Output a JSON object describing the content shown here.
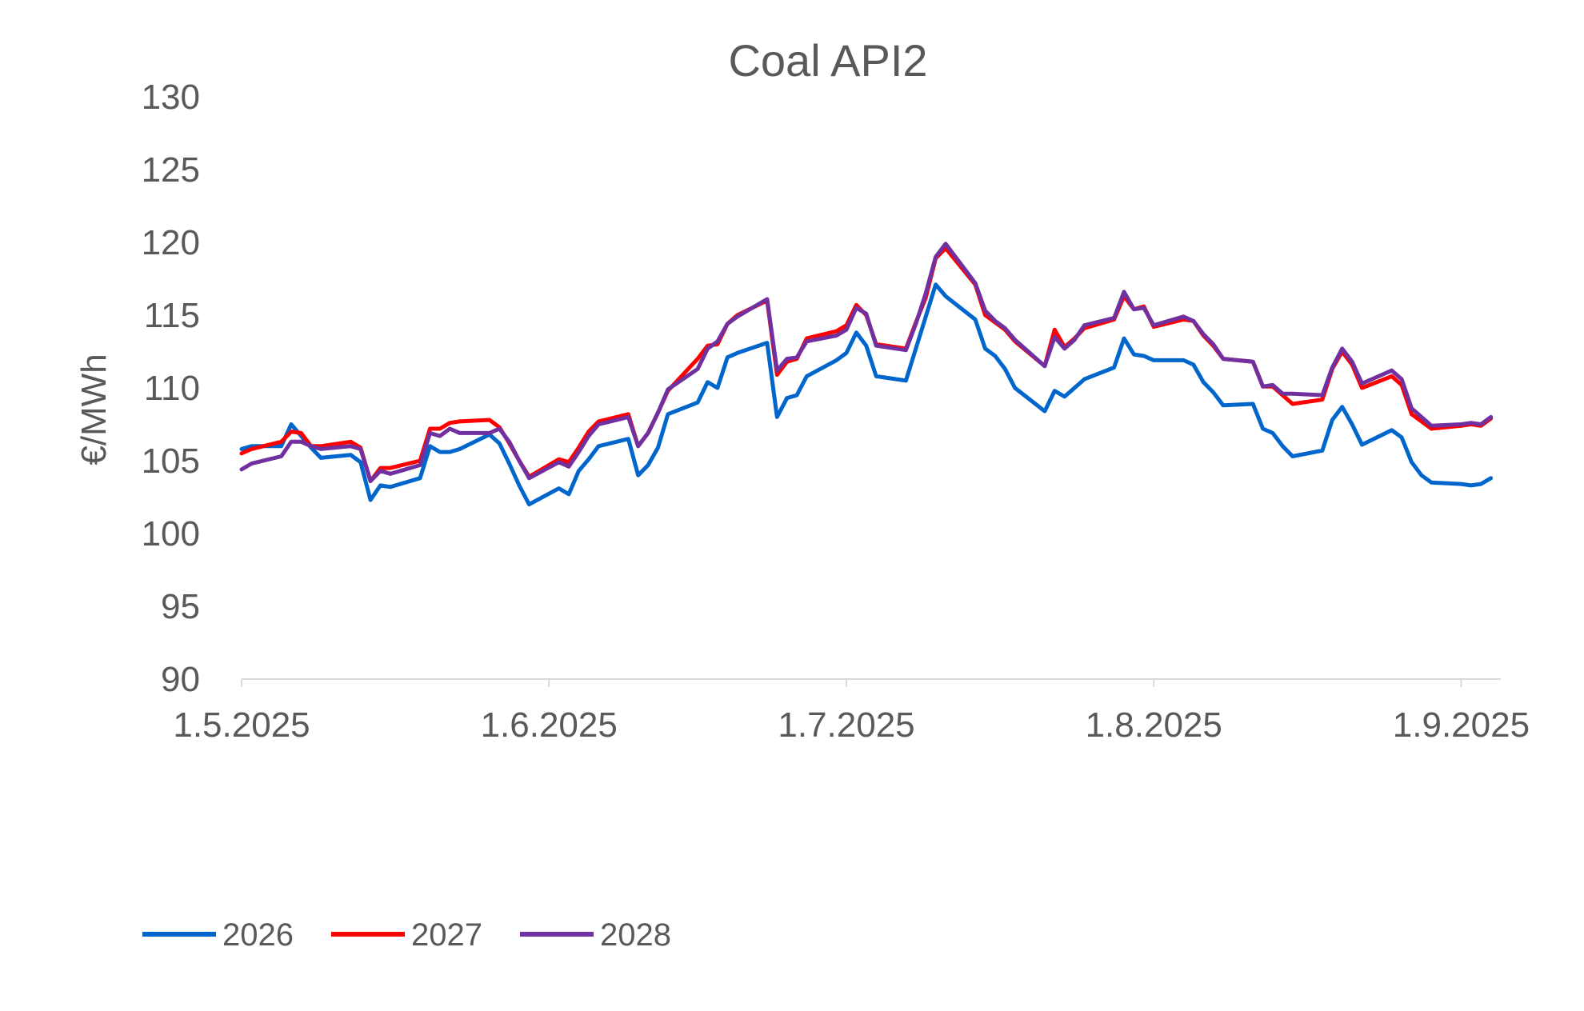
{
  "chart_data": {
    "type": "line",
    "title": "Coal API2",
    "ylabel": "€/MWh",
    "xlabel": "",
    "ylim": [
      90,
      130
    ],
    "yticks": [
      90,
      95,
      100,
      105,
      110,
      115,
      120,
      125,
      130
    ],
    "xrange": [
      "2025-05-01",
      "2025-09-05"
    ],
    "xticks": [
      {
        "date": "2025-05-01",
        "label": "1.5.2025"
      },
      {
        "date": "2025-06-01",
        "label": "1.6.2025"
      },
      {
        "date": "2025-07-01",
        "label": "1.7.2025"
      },
      {
        "date": "2025-08-01",
        "label": "1.8.2025"
      },
      {
        "date": "2025-09-01",
        "label": "1.9.2025"
      }
    ],
    "grid": false,
    "legend_position": "bottom-left",
    "series": [
      {
        "name": "2026",
        "color": "#0066CC",
        "points": [
          [
            "2025-05-01",
            105.8
          ],
          [
            "2025-05-02",
            106.0
          ],
          [
            "2025-05-05",
            106.0
          ],
          [
            "2025-05-06",
            107.5
          ],
          [
            "2025-05-07",
            106.7
          ],
          [
            "2025-05-08",
            105.9
          ],
          [
            "2025-05-09",
            105.2
          ],
          [
            "2025-05-12",
            105.4
          ],
          [
            "2025-05-13",
            104.9
          ],
          [
            "2025-05-14",
            102.3
          ],
          [
            "2025-05-15",
            103.3
          ],
          [
            "2025-05-16",
            103.2
          ],
          [
            "2025-05-19",
            103.8
          ],
          [
            "2025-05-20",
            106.0
          ],
          [
            "2025-05-21",
            105.6
          ],
          [
            "2025-05-22",
            105.6
          ],
          [
            "2025-05-23",
            105.8
          ],
          [
            "2025-05-26",
            106.8
          ],
          [
            "2025-05-27",
            106.2
          ],
          [
            "2025-05-28",
            104.8
          ],
          [
            "2025-05-29",
            103.3
          ],
          [
            "2025-05-30",
            102.0
          ],
          [
            "2025-06-02",
            103.1
          ],
          [
            "2025-06-03",
            102.7
          ],
          [
            "2025-06-04",
            104.3
          ],
          [
            "2025-06-05",
            105.1
          ],
          [
            "2025-06-06",
            106.0
          ],
          [
            "2025-06-09",
            106.5
          ],
          [
            "2025-06-10",
            104.0
          ],
          [
            "2025-06-11",
            104.7
          ],
          [
            "2025-06-12",
            105.9
          ],
          [
            "2025-06-13",
            108.2
          ],
          [
            "2025-06-16",
            109.0
          ],
          [
            "2025-06-17",
            110.4
          ],
          [
            "2025-06-18",
            110.0
          ],
          [
            "2025-06-19",
            112.1
          ],
          [
            "2025-06-20",
            112.4
          ],
          [
            "2025-06-23",
            113.1
          ],
          [
            "2025-06-24",
            108.0
          ],
          [
            "2025-06-25",
            109.3
          ],
          [
            "2025-06-26",
            109.5
          ],
          [
            "2025-06-27",
            110.8
          ],
          [
            "2025-06-30",
            111.9
          ],
          [
            "2025-07-01",
            112.4
          ],
          [
            "2025-07-02",
            113.8
          ],
          [
            "2025-07-03",
            112.9
          ],
          [
            "2025-07-04",
            110.8
          ],
          [
            "2025-07-07",
            110.5
          ],
          [
            "2025-07-10",
            117.1
          ],
          [
            "2025-07-11",
            116.3
          ],
          [
            "2025-07-14",
            114.7
          ],
          [
            "2025-07-15",
            112.7
          ],
          [
            "2025-07-16",
            112.2
          ],
          [
            "2025-07-17",
            111.3
          ],
          [
            "2025-07-18",
            110.0
          ],
          [
            "2025-07-21",
            108.4
          ],
          [
            "2025-07-22",
            109.8
          ],
          [
            "2025-07-23",
            109.4
          ],
          [
            "2025-07-24",
            110.0
          ],
          [
            "2025-07-25",
            110.6
          ],
          [
            "2025-07-28",
            111.4
          ],
          [
            "2025-07-29",
            113.4
          ],
          [
            "2025-07-30",
            112.3
          ],
          [
            "2025-07-31",
            112.2
          ],
          [
            "2025-08-01",
            111.9
          ],
          [
            "2025-08-04",
            111.9
          ],
          [
            "2025-08-05",
            111.6
          ],
          [
            "2025-08-06",
            110.4
          ],
          [
            "2025-08-07",
            109.7
          ],
          [
            "2025-08-08",
            108.8
          ],
          [
            "2025-08-11",
            108.9
          ],
          [
            "2025-08-12",
            107.2
          ],
          [
            "2025-08-13",
            106.9
          ],
          [
            "2025-08-14",
            106.0
          ],
          [
            "2025-08-15",
            105.3
          ],
          [
            "2025-08-18",
            105.7
          ],
          [
            "2025-08-19",
            107.8
          ],
          [
            "2025-08-20",
            108.7
          ],
          [
            "2025-08-21",
            107.5
          ],
          [
            "2025-08-22",
            106.1
          ],
          [
            "2025-08-25",
            107.1
          ],
          [
            "2025-08-26",
            106.6
          ],
          [
            "2025-08-27",
            104.9
          ],
          [
            "2025-08-28",
            104.0
          ],
          [
            "2025-08-29",
            103.5
          ],
          [
            "2025-09-01",
            103.4
          ],
          [
            "2025-09-02",
            103.3
          ],
          [
            "2025-09-03",
            103.4
          ],
          [
            "2025-09-04",
            103.8
          ]
        ]
      },
      {
        "name": "2027",
        "color": "#FF0000",
        "points": [
          [
            "2025-05-01",
            105.5
          ],
          [
            "2025-05-02",
            105.8
          ],
          [
            "2025-05-05",
            106.3
          ],
          [
            "2025-05-06",
            107.0
          ],
          [
            "2025-05-07",
            106.9
          ],
          [
            "2025-05-08",
            106.0
          ],
          [
            "2025-05-09",
            106.0
          ],
          [
            "2025-05-12",
            106.3
          ],
          [
            "2025-05-13",
            105.9
          ],
          [
            "2025-05-14",
            103.6
          ],
          [
            "2025-05-15",
            104.5
          ],
          [
            "2025-05-16",
            104.5
          ],
          [
            "2025-05-19",
            105.0
          ],
          [
            "2025-05-20",
            107.2
          ],
          [
            "2025-05-21",
            107.2
          ],
          [
            "2025-05-22",
            107.6
          ],
          [
            "2025-05-23",
            107.7
          ],
          [
            "2025-05-26",
            107.8
          ],
          [
            "2025-05-27",
            107.3
          ],
          [
            "2025-05-28",
            106.2
          ],
          [
            "2025-05-29",
            105.0
          ],
          [
            "2025-05-30",
            103.9
          ],
          [
            "2025-06-02",
            105.1
          ],
          [
            "2025-06-03",
            104.9
          ],
          [
            "2025-06-04",
            105.9
          ],
          [
            "2025-06-05",
            107.0
          ],
          [
            "2025-06-06",
            107.7
          ],
          [
            "2025-06-09",
            108.2
          ],
          [
            "2025-06-10",
            106.0
          ],
          [
            "2025-06-11",
            106.9
          ],
          [
            "2025-06-12",
            108.3
          ],
          [
            "2025-06-13",
            109.8
          ],
          [
            "2025-06-16",
            112.0
          ],
          [
            "2025-06-17",
            112.9
          ],
          [
            "2025-06-18",
            113.0
          ],
          [
            "2025-06-19",
            114.4
          ],
          [
            "2025-06-20",
            115.0
          ],
          [
            "2025-06-23",
            116.0
          ],
          [
            "2025-06-24",
            110.9
          ],
          [
            "2025-06-25",
            111.8
          ],
          [
            "2025-06-26",
            112.0
          ],
          [
            "2025-06-27",
            113.4
          ],
          [
            "2025-06-30",
            113.9
          ],
          [
            "2025-07-01",
            114.3
          ],
          [
            "2025-07-02",
            115.7
          ],
          [
            "2025-07-03",
            115.0
          ],
          [
            "2025-07-04",
            113.0
          ],
          [
            "2025-07-07",
            112.7
          ],
          [
            "2025-07-08",
            114.5
          ],
          [
            "2025-07-09",
            116.2
          ],
          [
            "2025-07-10",
            118.9
          ],
          [
            "2025-07-11",
            119.6
          ],
          [
            "2025-07-14",
            117.1
          ],
          [
            "2025-07-15",
            115.0
          ],
          [
            "2025-07-16",
            114.5
          ],
          [
            "2025-07-17",
            114.0
          ],
          [
            "2025-07-18",
            113.2
          ],
          [
            "2025-07-21",
            111.5
          ],
          [
            "2025-07-22",
            114.0
          ],
          [
            "2025-07-23",
            112.8
          ],
          [
            "2025-07-24",
            113.4
          ],
          [
            "2025-07-25",
            114.1
          ],
          [
            "2025-07-28",
            114.7
          ],
          [
            "2025-07-29",
            116.3
          ],
          [
            "2025-07-30",
            115.4
          ],
          [
            "2025-07-31",
            115.6
          ],
          [
            "2025-08-01",
            114.2
          ],
          [
            "2025-08-04",
            114.7
          ],
          [
            "2025-08-05",
            114.6
          ],
          [
            "2025-08-06",
            113.6
          ],
          [
            "2025-08-07",
            112.9
          ],
          [
            "2025-08-08",
            112.0
          ],
          [
            "2025-08-11",
            111.8
          ],
          [
            "2025-08-12",
            110.1
          ],
          [
            "2025-08-13",
            110.1
          ],
          [
            "2025-08-14",
            109.5
          ],
          [
            "2025-08-15",
            108.9
          ],
          [
            "2025-08-18",
            109.2
          ],
          [
            "2025-08-19",
            111.3
          ],
          [
            "2025-08-20",
            112.5
          ],
          [
            "2025-08-21",
            111.6
          ],
          [
            "2025-08-22",
            110.0
          ],
          [
            "2025-08-25",
            110.8
          ],
          [
            "2025-08-26",
            110.2
          ],
          [
            "2025-08-27",
            108.2
          ],
          [
            "2025-08-28",
            107.7
          ],
          [
            "2025-08-29",
            107.2
          ],
          [
            "2025-09-01",
            107.4
          ],
          [
            "2025-09-02",
            107.5
          ],
          [
            "2025-09-03",
            107.4
          ],
          [
            "2025-09-04",
            107.9
          ]
        ]
      },
      {
        "name": "2028",
        "color": "#7030A0",
        "points": [
          [
            "2025-05-01",
            104.4
          ],
          [
            "2025-05-02",
            104.8
          ],
          [
            "2025-05-05",
            105.3
          ],
          [
            "2025-05-06",
            106.3
          ],
          [
            "2025-05-07",
            106.3
          ],
          [
            "2025-05-08",
            106.0
          ],
          [
            "2025-05-09",
            105.8
          ],
          [
            "2025-05-12",
            106.0
          ],
          [
            "2025-05-13",
            105.8
          ],
          [
            "2025-05-14",
            103.6
          ],
          [
            "2025-05-15",
            104.3
          ],
          [
            "2025-05-16",
            104.1
          ],
          [
            "2025-05-19",
            104.7
          ],
          [
            "2025-05-20",
            106.9
          ],
          [
            "2025-05-21",
            106.7
          ],
          [
            "2025-05-22",
            107.2
          ],
          [
            "2025-05-23",
            106.9
          ],
          [
            "2025-05-26",
            106.9
          ],
          [
            "2025-05-27",
            107.2
          ],
          [
            "2025-05-28",
            106.3
          ],
          [
            "2025-05-29",
            105.0
          ],
          [
            "2025-05-30",
            103.8
          ],
          [
            "2025-06-02",
            104.9
          ],
          [
            "2025-06-03",
            104.6
          ],
          [
            "2025-06-04",
            105.6
          ],
          [
            "2025-06-05",
            106.7
          ],
          [
            "2025-06-06",
            107.5
          ],
          [
            "2025-06-09",
            108.0
          ],
          [
            "2025-06-10",
            106.0
          ],
          [
            "2025-06-11",
            106.9
          ],
          [
            "2025-06-12",
            108.3
          ],
          [
            "2025-06-13",
            109.9
          ],
          [
            "2025-06-16",
            111.3
          ],
          [
            "2025-06-17",
            112.7
          ],
          [
            "2025-06-18",
            113.2
          ],
          [
            "2025-06-19",
            114.4
          ],
          [
            "2025-06-20",
            114.9
          ],
          [
            "2025-06-23",
            116.1
          ],
          [
            "2025-06-24",
            111.2
          ],
          [
            "2025-06-25",
            112.0
          ],
          [
            "2025-06-26",
            112.1
          ],
          [
            "2025-06-27",
            113.2
          ],
          [
            "2025-06-30",
            113.6
          ],
          [
            "2025-07-01",
            114.0
          ],
          [
            "2025-07-02",
            115.5
          ],
          [
            "2025-07-03",
            115.1
          ],
          [
            "2025-07-04",
            112.9
          ],
          [
            "2025-07-07",
            112.6
          ],
          [
            "2025-07-08",
            114.4
          ],
          [
            "2025-07-09",
            116.5
          ],
          [
            "2025-07-10",
            119.0
          ],
          [
            "2025-07-11",
            119.9
          ],
          [
            "2025-07-14",
            117.2
          ],
          [
            "2025-07-15",
            115.3
          ],
          [
            "2025-07-16",
            114.6
          ],
          [
            "2025-07-17",
            114.1
          ],
          [
            "2025-07-18",
            113.3
          ],
          [
            "2025-07-21",
            111.5
          ],
          [
            "2025-07-22",
            113.5
          ],
          [
            "2025-07-23",
            112.7
          ],
          [
            "2025-07-24",
            113.3
          ],
          [
            "2025-07-25",
            114.3
          ],
          [
            "2025-07-28",
            114.8
          ],
          [
            "2025-07-29",
            116.6
          ],
          [
            "2025-07-30",
            115.4
          ],
          [
            "2025-07-31",
            115.5
          ],
          [
            "2025-08-01",
            114.3
          ],
          [
            "2025-08-04",
            114.9
          ],
          [
            "2025-08-05",
            114.6
          ],
          [
            "2025-08-06",
            113.7
          ],
          [
            "2025-08-07",
            113.0
          ],
          [
            "2025-08-08",
            112.0
          ],
          [
            "2025-08-11",
            111.8
          ],
          [
            "2025-08-12",
            110.1
          ],
          [
            "2025-08-13",
            110.2
          ],
          [
            "2025-08-14",
            109.6
          ],
          [
            "2025-08-15",
            109.6
          ],
          [
            "2025-08-18",
            109.5
          ],
          [
            "2025-08-19",
            111.4
          ],
          [
            "2025-08-20",
            112.7
          ],
          [
            "2025-08-21",
            111.8
          ],
          [
            "2025-08-22",
            110.3
          ],
          [
            "2025-08-25",
            111.2
          ],
          [
            "2025-08-26",
            110.6
          ],
          [
            "2025-08-27",
            108.6
          ],
          [
            "2025-08-28",
            108.0
          ],
          [
            "2025-08-29",
            107.4
          ],
          [
            "2025-09-01",
            107.5
          ],
          [
            "2025-09-02",
            107.6
          ],
          [
            "2025-09-03",
            107.5
          ],
          [
            "2025-09-04",
            108.0
          ]
        ]
      }
    ]
  }
}
